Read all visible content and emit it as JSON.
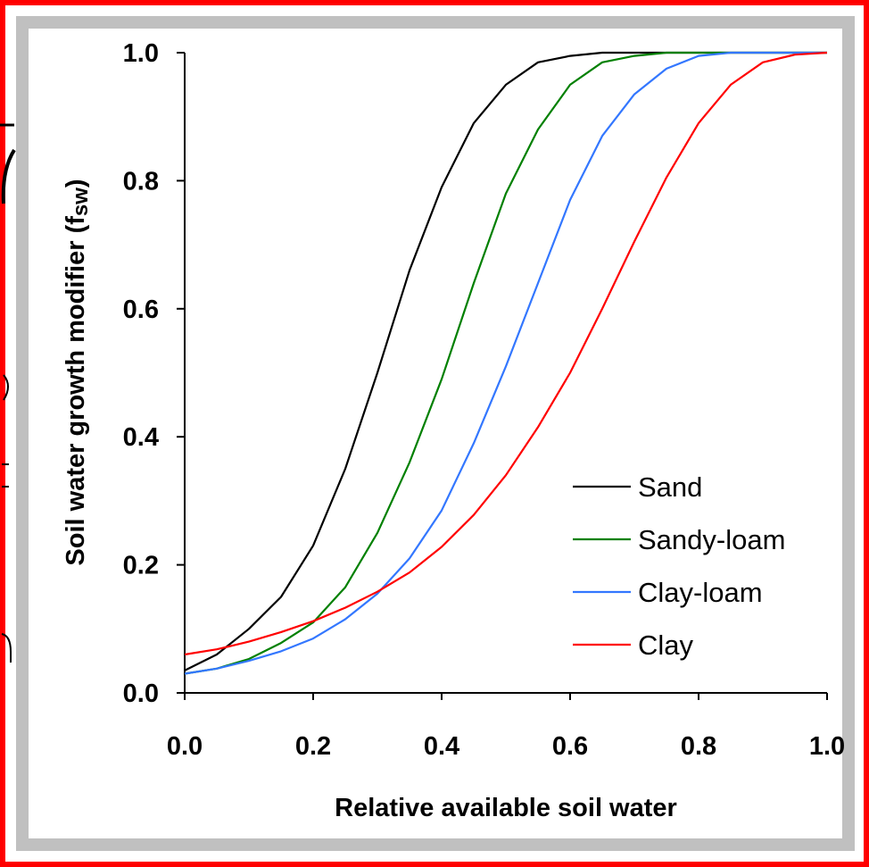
{
  "chart_data": {
    "type": "line",
    "title": "",
    "xlabel": "Relative available soil water",
    "ylabel_main": "Soil water growth modifier (f",
    "ylabel_sub": "sw",
    "ylabel_close": ")",
    "xlim": [
      0.0,
      1.0
    ],
    "ylim": [
      0.0,
      1.0
    ],
    "x_ticks": [
      0.0,
      0.2,
      0.4,
      0.6,
      0.8,
      1.0
    ],
    "y_ticks": [
      0.0,
      0.2,
      0.4,
      0.6,
      0.8,
      1.0
    ],
    "x_tick_labels": [
      "0.0",
      "0.2",
      "0.4",
      "0.6",
      "0.8",
      "1.0"
    ],
    "y_tick_labels": [
      "0.0",
      "0.2",
      "0.4",
      "0.6",
      "0.8",
      "1.0"
    ],
    "grid": false,
    "legend_position": "lower-right",
    "series": [
      {
        "name": "Sand",
        "color": "#000000",
        "x": [
          0,
          0.05,
          0.1,
          0.15,
          0.2,
          0.25,
          0.3,
          0.35,
          0.4,
          0.45,
          0.5,
          0.55,
          0.6,
          0.65,
          0.7,
          0.8,
          0.9,
          1.0
        ],
        "y": [
          0.035,
          0.06,
          0.1,
          0.15,
          0.23,
          0.35,
          0.5,
          0.66,
          0.79,
          0.89,
          0.95,
          0.985,
          0.995,
          1.0,
          1.0,
          1.0,
          1.0,
          1.0
        ]
      },
      {
        "name": "Sandy-loam",
        "color": "#008000",
        "x": [
          0,
          0.05,
          0.1,
          0.15,
          0.2,
          0.25,
          0.3,
          0.35,
          0.4,
          0.45,
          0.5,
          0.55,
          0.6,
          0.65,
          0.7,
          0.75,
          0.8,
          0.9,
          1.0
        ],
        "y": [
          0.03,
          0.038,
          0.053,
          0.078,
          0.11,
          0.165,
          0.25,
          0.36,
          0.49,
          0.64,
          0.78,
          0.88,
          0.95,
          0.985,
          0.995,
          1.0,
          1.0,
          1.0,
          1.0
        ]
      },
      {
        "name": "Clay-loam",
        "color": "#3377ff",
        "x": [
          0,
          0.05,
          0.1,
          0.15,
          0.2,
          0.25,
          0.3,
          0.35,
          0.4,
          0.45,
          0.5,
          0.55,
          0.6,
          0.65,
          0.7,
          0.75,
          0.8,
          0.85,
          0.9,
          1.0
        ],
        "y": [
          0.03,
          0.038,
          0.05,
          0.065,
          0.085,
          0.115,
          0.155,
          0.21,
          0.285,
          0.39,
          0.51,
          0.64,
          0.77,
          0.87,
          0.935,
          0.975,
          0.995,
          1.0,
          1.0,
          1.0
        ]
      },
      {
        "name": "Clay",
        "color": "#ff0000",
        "x": [
          0,
          0.05,
          0.1,
          0.15,
          0.2,
          0.25,
          0.3,
          0.35,
          0.4,
          0.45,
          0.5,
          0.55,
          0.6,
          0.65,
          0.7,
          0.75,
          0.8,
          0.85,
          0.9,
          0.95,
          1.0
        ],
        "y": [
          0.06,
          0.068,
          0.08,
          0.095,
          0.112,
          0.133,
          0.158,
          0.188,
          0.228,
          0.278,
          0.34,
          0.415,
          0.5,
          0.6,
          0.705,
          0.805,
          0.89,
          0.95,
          0.985,
          0.997,
          1.0
        ]
      }
    ]
  }
}
